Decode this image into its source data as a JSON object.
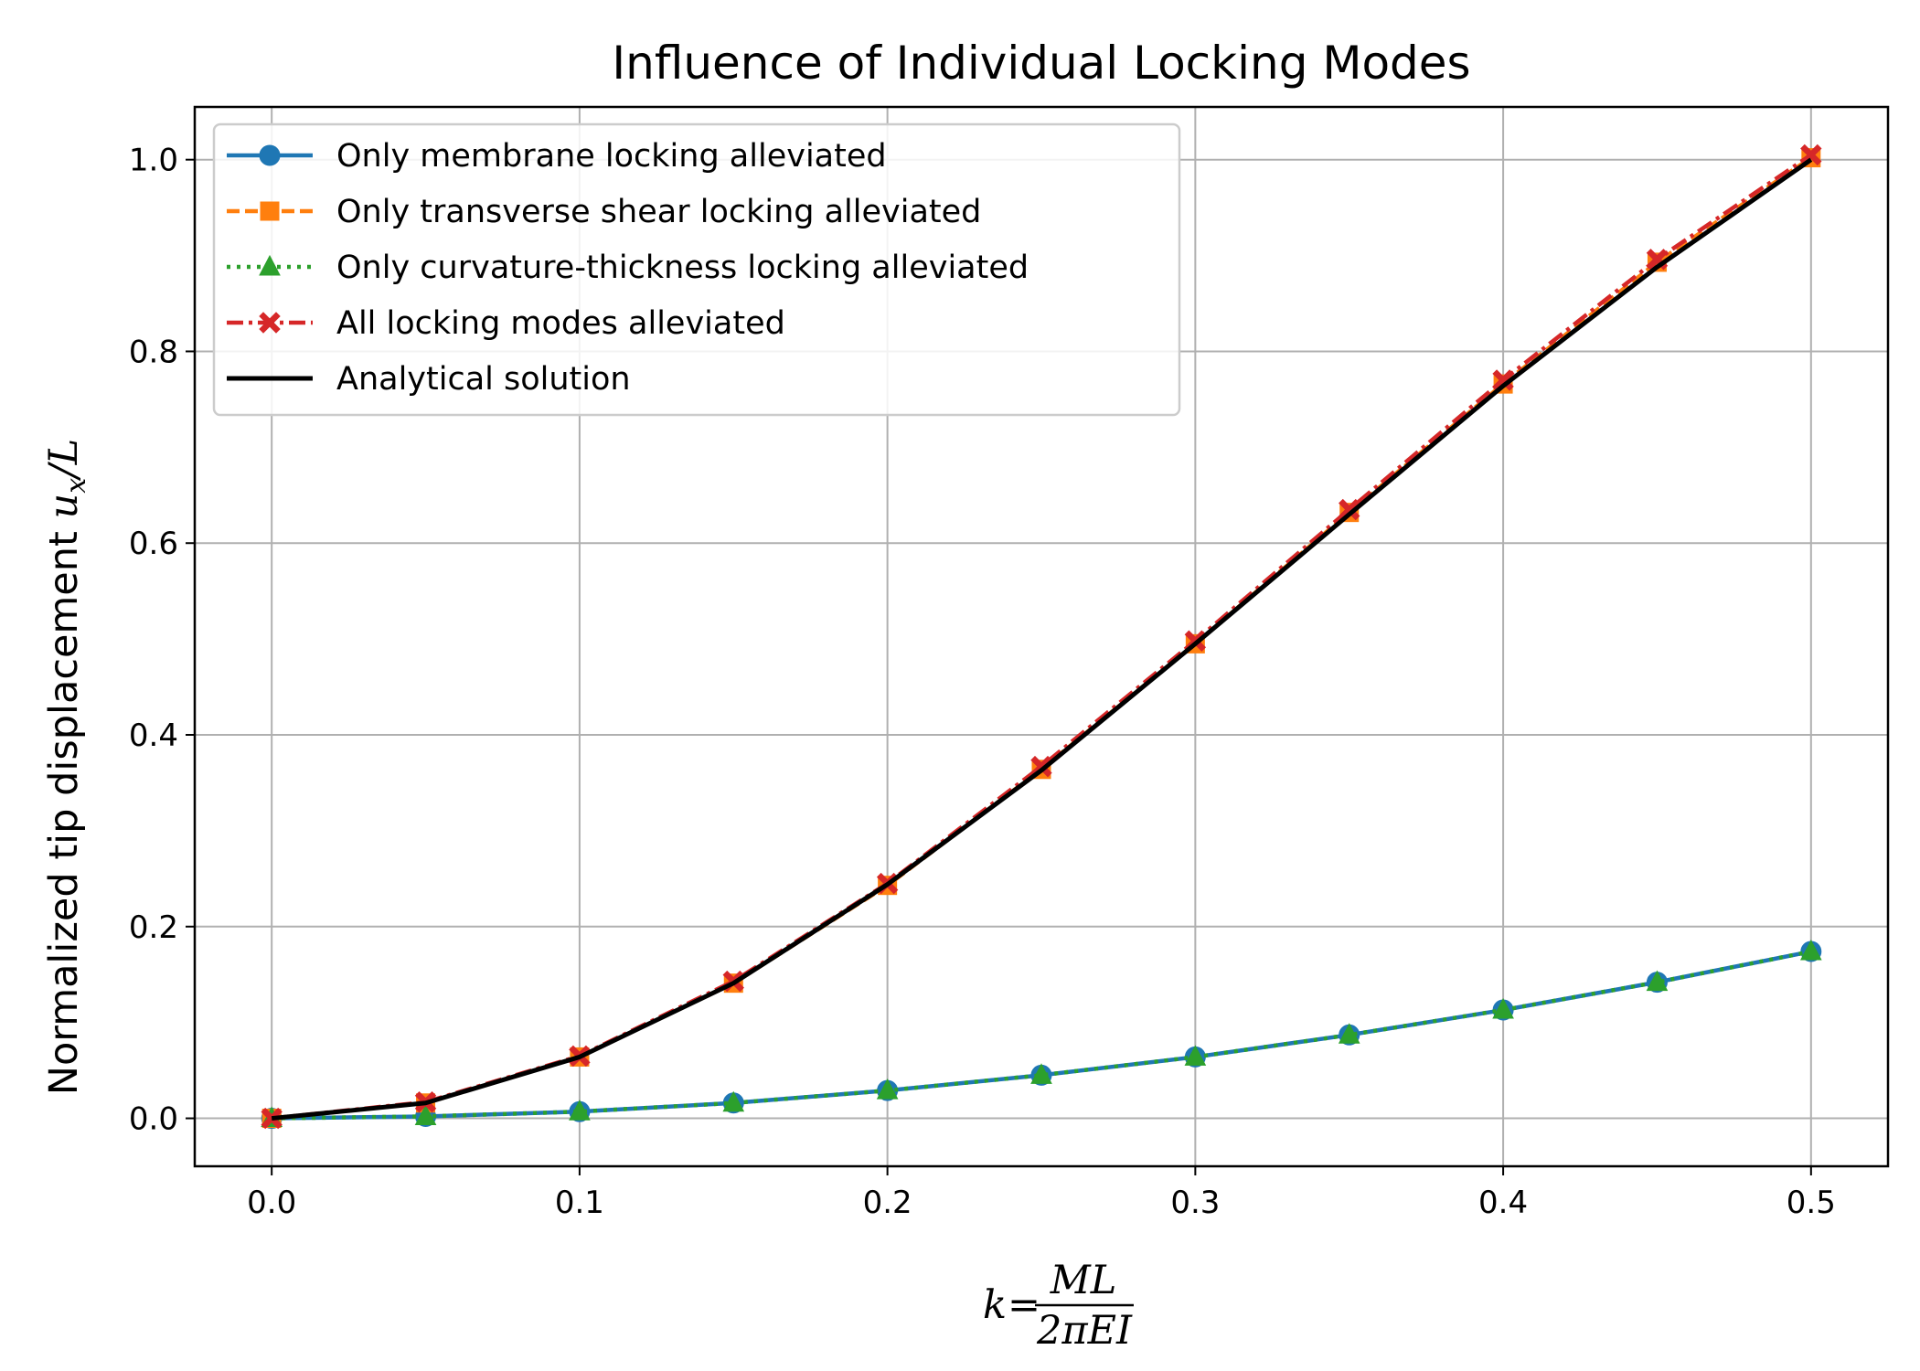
{
  "chart_data": {
    "type": "line",
    "title": "Influence of Individual Locking Modes",
    "ylabel": "Normalized tip displacement u_x/L",
    "xlabel": "k = ML / 2πEI",
    "xlim": [
      -0.025,
      0.525
    ],
    "ylim": [
      -0.05,
      1.055
    ],
    "grid": true,
    "legend_placement": "top-left",
    "x_ticks": [
      "0.0",
      "0.1",
      "0.2",
      "0.3",
      "0.4",
      "0.5"
    ],
    "y_ticks": [
      "0.0",
      "0.2",
      "0.4",
      "0.6",
      "0.8",
      "1.0"
    ],
    "x": [
      0.0,
      0.05,
      0.1,
      0.15,
      0.2,
      0.25,
      0.3,
      0.35,
      0.4,
      0.45,
      0.5
    ],
    "series": [
      {
        "name": "Only membrane locking alleviated",
        "color": "#1f77b4",
        "linestyle": "solid",
        "marker": "circle",
        "values": [
          0.0,
          0.002,
          0.007,
          0.016,
          0.029,
          0.045,
          0.064,
          0.087,
          0.113,
          0.142,
          0.174
        ]
      },
      {
        "name": "Only transverse shear locking alleviated",
        "color": "#ff7f0e",
        "linestyle": "dashed",
        "marker": "square",
        "values": [
          0.0,
          0.016,
          0.064,
          0.141,
          0.243,
          0.364,
          0.495,
          0.632,
          0.766,
          0.893,
          1.002
        ]
      },
      {
        "name": "Only curvature-thickness locking alleviated",
        "color": "#2ca02c",
        "linestyle": "dotted",
        "marker": "triangle",
        "values": [
          0.0,
          0.002,
          0.007,
          0.016,
          0.029,
          0.045,
          0.064,
          0.087,
          0.113,
          0.142,
          0.174
        ]
      },
      {
        "name": "All locking modes alleviated",
        "color": "#d62728",
        "linestyle": "dashdot",
        "marker": "x",
        "values": [
          0.0,
          0.017,
          0.065,
          0.143,
          0.245,
          0.367,
          0.498,
          0.635,
          0.77,
          0.896,
          1.005
        ]
      },
      {
        "name": "Analytical solution",
        "color": "#000000",
        "linestyle": "solid",
        "marker": "none",
        "values": [
          0.0,
          0.016,
          0.064,
          0.141,
          0.244,
          0.363,
          0.495,
          0.63,
          0.764,
          0.888,
          1.0
        ]
      }
    ]
  }
}
